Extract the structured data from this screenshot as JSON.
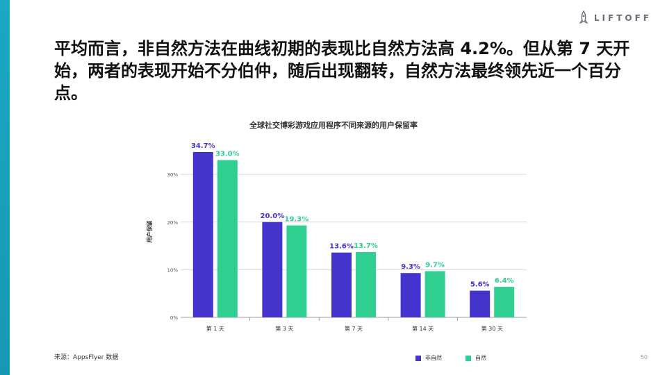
{
  "brand": {
    "name": "LIFTOFF",
    "icon": "rocket-icon"
  },
  "headline": "平均而言，非自然方法在曲线初期的表现比自然方法高 4.2%。但从第 7 天开始，两者的表现开始不分伯仲，随后出现翻转，自然方法最终领先近一个百分点。",
  "source": "来源：AppsFlyer 数据",
  "page_number": "50",
  "colors": {
    "accent": "#1aa8c4",
    "non_organic": "#4433cc",
    "organic": "#2ecf90"
  },
  "chart_data": {
    "type": "bar",
    "title": "全球社交博彩游戏应用程序不同来源的用户保留率",
    "ylabel": "用户保留",
    "xlabel": "",
    "categories": [
      "第 1 天",
      "第 3 天",
      "第 7 天",
      "第 14 天",
      "第 30 天"
    ],
    "series": [
      {
        "name": "非自然",
        "values": [
          34.7,
          20.0,
          13.6,
          9.3,
          5.6
        ],
        "labels": [
          "34.7%",
          "20.0%",
          "13.6%",
          "9.3%",
          "5.6%"
        ]
      },
      {
        "name": "自然",
        "values": [
          33.0,
          19.3,
          13.7,
          9.7,
          6.4
        ],
        "labels": [
          "33.0%",
          "19.3%",
          "13.7%",
          "9.7%",
          "6.4%"
        ]
      }
    ],
    "yticks": [
      0,
      10,
      20,
      30
    ],
    "ytick_labels": [
      "0%",
      "10%",
      "20%",
      "30%"
    ],
    "ylim": [
      0,
      36
    ],
    "grid": true,
    "legend_position": "bottom-right"
  }
}
